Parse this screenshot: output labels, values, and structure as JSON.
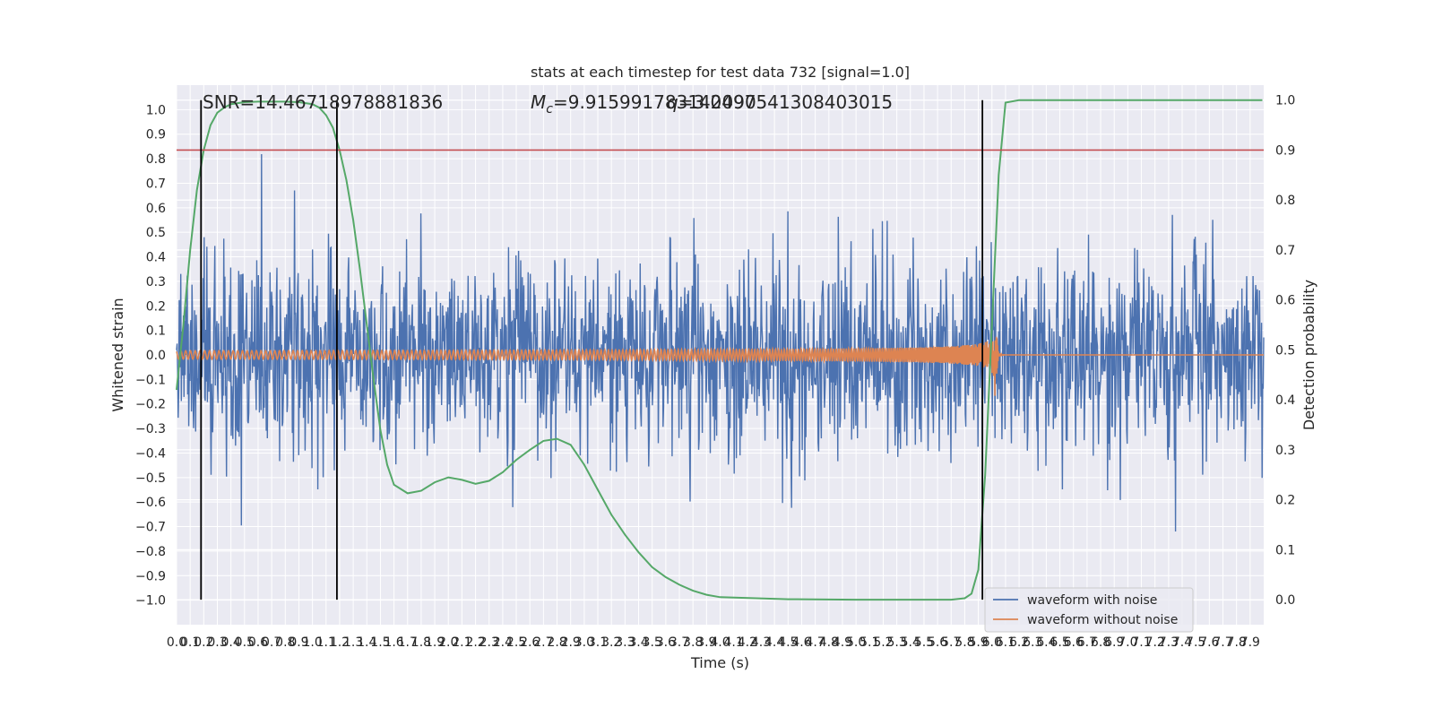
{
  "chart_data": {
    "type": "line",
    "title": "stats at each timestep for test data 732 [signal=1.0]",
    "xlabel": "Time (s)",
    "ylabel": "Whitened strain",
    "ylabel_right": "Detection probability",
    "xlim": [
      0.0,
      8.0
    ],
    "ylim": [
      -1.1,
      1.1
    ],
    "ylim_right": [
      -0.05,
      1.03
    ],
    "x_ticks": [
      "0.0",
      "0.1",
      "0.2",
      "0.3",
      "0.4",
      "0.5",
      "0.6",
      "0.7",
      "0.8",
      "0.9",
      "1.0",
      "1.1",
      "1.2",
      "1.3",
      "1.4",
      "1.5",
      "1.6",
      "1.7",
      "1.8",
      "1.9",
      "2.0",
      "2.1",
      "2.2",
      "2.3",
      "2.4",
      "2.5",
      "2.6",
      "2.7",
      "2.8",
      "2.9",
      "3.0",
      "3.1",
      "3.2",
      "3.3",
      "3.4",
      "3.5",
      "3.6",
      "3.7",
      "3.8",
      "3.9",
      "4.0",
      "4.1",
      "4.2",
      "4.3",
      "4.4",
      "4.5",
      "4.6",
      "4.7",
      "4.8",
      "4.9",
      "5.0",
      "5.1",
      "5.2",
      "5.3",
      "5.4",
      "5.5",
      "5.6",
      "5.7",
      "5.8",
      "5.9",
      "6.0",
      "6.1",
      "6.2",
      "6.3",
      "6.4",
      "6.5",
      "6.6",
      "6.7",
      "6.8",
      "6.9",
      "7.0",
      "7.1",
      "7.2",
      "7.3",
      "7.4",
      "7.5",
      "7.6",
      "7.7",
      "7.8",
      "7.9"
    ],
    "y_ticks": [
      "1.0",
      "0.9",
      "0.8",
      "0.7",
      "0.6",
      "0.5",
      "0.4",
      "0.3",
      "0.2",
      "0.1",
      "0.0",
      "−0.1",
      "−0.2",
      "−0.3",
      "−0.4",
      "−0.5",
      "−0.6",
      "−0.7",
      "−0.8",
      "−0.9",
      "−1.0"
    ],
    "y_ticks_right": [
      "1.0",
      "0.9",
      "0.8",
      "0.7",
      "0.6",
      "0.5",
      "0.4",
      "0.3",
      "0.2",
      "0.1",
      "0.0"
    ],
    "annotations": {
      "snr": "SNR=14.46718978881836",
      "mc": "M",
      "mc_sub": "c",
      "mc_value": "=9.915991783142090",
      "q": "=3.0497541308403015"
    },
    "threshold_probability": 0.9,
    "vertical_lines_x": [
      0.18,
      1.18,
      5.93
    ],
    "merger_time": 6.02,
    "series": [
      {
        "name": "waveform with noise",
        "color": "#4c72b0",
        "amplitude": 0.35,
        "extreme_range": [
          -1.0,
          0.93
        ]
      },
      {
        "name": "waveform without noise",
        "color": "#dd8452"
      },
      {
        "color": "#55a868",
        "x": [
          0.0,
          0.05,
          0.1,
          0.15,
          0.2,
          0.25,
          0.3,
          0.35,
          0.4,
          0.5,
          0.6,
          0.7,
          0.8,
          0.9,
          1.0,
          1.05,
          1.1,
          1.15,
          1.2,
          1.25,
          1.3,
          1.35,
          1.4,
          1.45,
          1.5,
          1.55,
          1.6,
          1.7,
          1.8,
          1.9,
          2.0,
          2.1,
          2.2,
          2.3,
          2.4,
          2.5,
          2.6,
          2.7,
          2.8,
          2.9,
          3.0,
          3.1,
          3.2,
          3.3,
          3.4,
          3.5,
          3.6,
          3.7,
          3.8,
          3.9,
          4.0,
          4.5,
          5.0,
          5.5,
          5.7,
          5.8,
          5.85,
          5.9,
          5.95,
          6.0,
          6.05,
          6.1,
          6.2,
          6.5,
          7.0,
          7.5,
          7.99
        ],
        "y": [
          0.42,
          0.55,
          0.7,
          0.82,
          0.9,
          0.95,
          0.975,
          0.985,
          0.992,
          0.996,
          0.997,
          0.997,
          0.997,
          0.996,
          0.992,
          0.985,
          0.97,
          0.945,
          0.9,
          0.84,
          0.76,
          0.66,
          0.55,
          0.44,
          0.34,
          0.27,
          0.23,
          0.213,
          0.218,
          0.235,
          0.245,
          0.24,
          0.232,
          0.238,
          0.255,
          0.28,
          0.3,
          0.318,
          0.322,
          0.31,
          0.27,
          0.22,
          0.17,
          0.13,
          0.095,
          0.065,
          0.045,
          0.03,
          0.018,
          0.01,
          0.005,
          0.001,
          0.0,
          0.0,
          0.0,
          0.003,
          0.012,
          0.06,
          0.25,
          0.55,
          0.85,
          0.995,
          1.0,
          1.0,
          1.0,
          1.0,
          1.0
        ]
      }
    ]
  }
}
